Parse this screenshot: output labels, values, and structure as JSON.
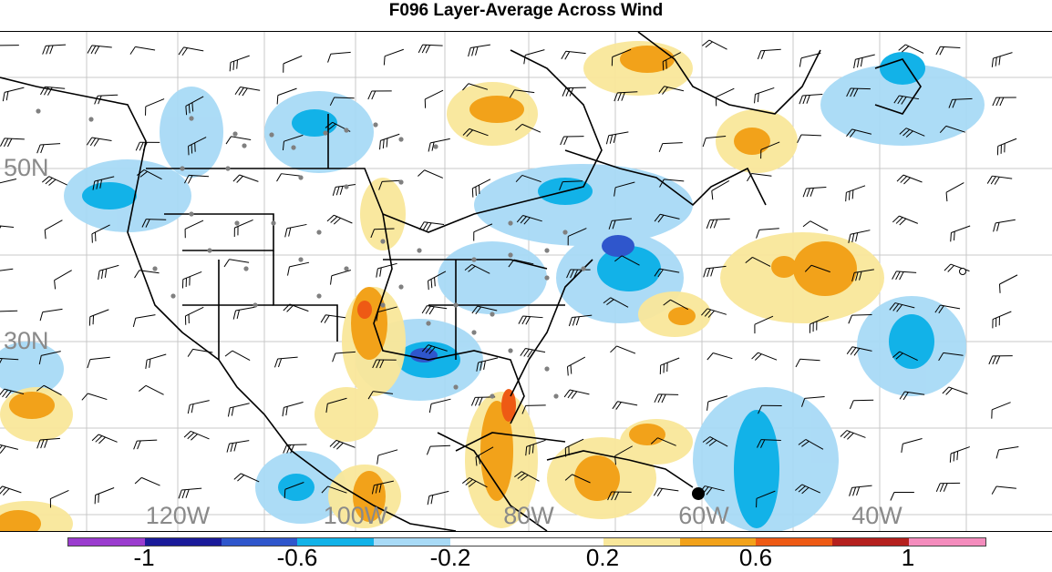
{
  "title": "F096 Layer-Average Across Wind",
  "lat_labels": [
    "50N",
    "30N"
  ],
  "lon_labels": [
    "120W",
    "100W",
    "80W",
    "60W",
    "40W"
  ],
  "colorbar": {
    "colors": [
      "#9b3ccf",
      "#1a1a9a",
      "#2f56cc",
      "#12b2e8",
      "#a8daf6",
      "#ffffff",
      "#ffffff",
      "#f9e79a",
      "#f2a21a",
      "#ee5a14",
      "#b5201e",
      "#f48cbd"
    ],
    "tick_labels": [
      "-1",
      "-0.6",
      "-0.2",
      "0.2",
      "0.6",
      "1"
    ]
  }
}
